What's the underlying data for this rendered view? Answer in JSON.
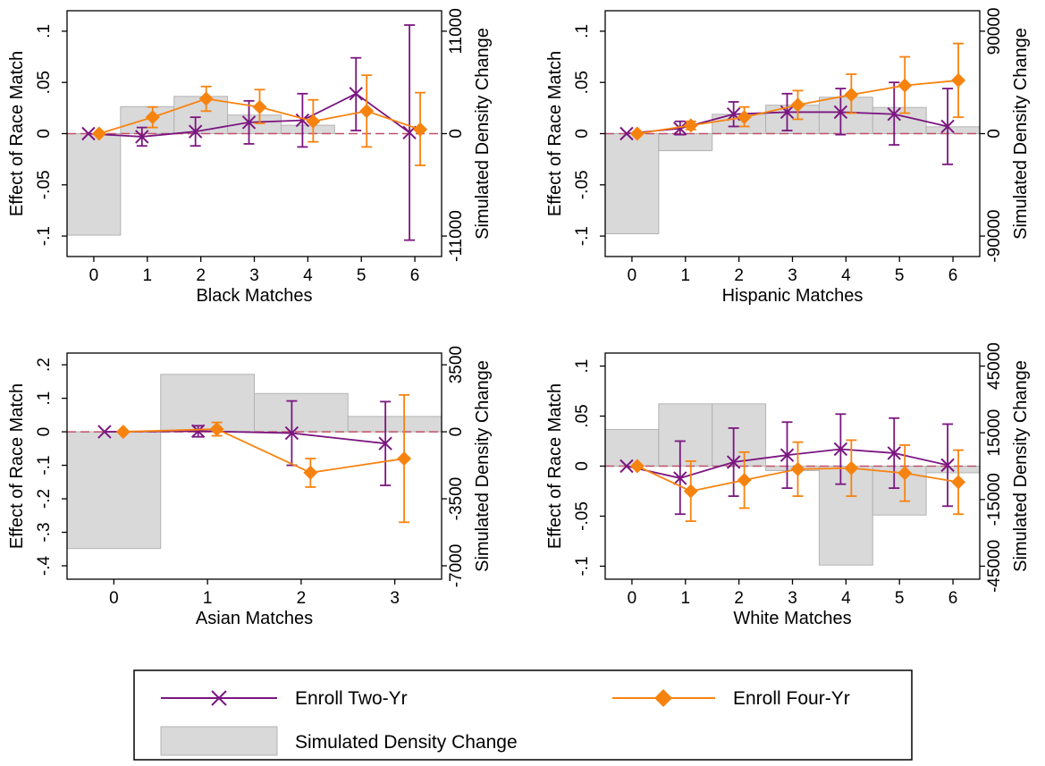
{
  "colors": {
    "two_year": "#7b1680",
    "four_year": "#f7830f",
    "bar_fill": "#d9d9d9",
    "bar_stroke": "#b3b3b3",
    "zero_line": "#c0506a"
  },
  "legend": {
    "two_year": "Enroll Two-Yr",
    "four_year": "Enroll Four-Yr",
    "density": "Simulated Density Change"
  },
  "chart_data": [
    {
      "type": "line",
      "xlabel": "Black Matches",
      "ylabel": "Effect of Race Match",
      "y2label": "Simulated Density Change",
      "xlim": [
        -0.5,
        6.5
      ],
      "xticks": [
        0,
        1,
        2,
        3,
        4,
        5,
        6
      ],
      "ylim": [
        -0.12,
        0.12
      ],
      "yticks": [
        -0.1,
        -0.05,
        0,
        0.05,
        0.1
      ],
      "ytick_labels": [
        "-.1",
        "-.05",
        "0",
        ".05",
        ".1"
      ],
      "y2lim": [
        -13200,
        13200
      ],
      "y2ticks": [
        -11000,
        0,
        11000
      ],
      "y2tick_labels": [
        "-11000",
        "0",
        "11000"
      ],
      "bars": {
        "x": [
          0,
          1,
          2,
          3,
          4,
          5,
          6
        ],
        "values": [
          -10900,
          2900,
          4000,
          2000,
          900,
          0,
          0
        ]
      },
      "series": [
        {
          "name": "Enroll Two-Yr",
          "x": [
            0,
            1,
            2,
            3,
            4,
            5,
            6
          ],
          "y": [
            0,
            -0.003,
            0.002,
            0.011,
            0.013,
            0.039,
            0.001
          ],
          "lo": [
            null,
            -0.012,
            -0.012,
            -0.01,
            -0.013,
            0.003,
            -0.104
          ],
          "hi": [
            null,
            0.006,
            0.016,
            0.032,
            0.039,
            0.074,
            0.106
          ]
        },
        {
          "name": "Enroll Four-Yr",
          "x": [
            0,
            1,
            2,
            3,
            4,
            5,
            6
          ],
          "y": [
            0,
            0.016,
            0.034,
            0.026,
            0.012,
            0.022,
            0.004
          ],
          "lo": [
            null,
            0.006,
            0.022,
            0.01,
            -0.008,
            -0.013,
            -0.031
          ],
          "hi": [
            null,
            0.026,
            0.046,
            0.043,
            0.033,
            0.057,
            0.04
          ]
        }
      ]
    },
    {
      "type": "line",
      "xlabel": "Hispanic Matches",
      "ylabel": "Effect of Race Match",
      "y2label": "Simulated Density Change",
      "xlim": [
        -0.5,
        6.5
      ],
      "xticks": [
        0,
        1,
        2,
        3,
        4,
        5,
        6
      ],
      "ylim": [
        -0.12,
        0.12
      ],
      "yticks": [
        -0.1,
        -0.05,
        0,
        0.05,
        0.1
      ],
      "ytick_labels": [
        "-.1",
        "-.05",
        "0",
        ".05",
        ".1"
      ],
      "y2lim": [
        -108000,
        108000
      ],
      "y2ticks": [
        -90000,
        0,
        90000
      ],
      "y2tick_labels": [
        "-90000",
        "0",
        "90000"
      ],
      "bars": {
        "x": [
          0,
          1,
          2,
          3,
          4,
          5,
          6
        ],
        "values": [
          -88000,
          -15000,
          17000,
          25000,
          32000,
          23000,
          6000
        ]
      },
      "series": [
        {
          "name": "Enroll Two-Yr",
          "x": [
            0,
            1,
            2,
            3,
            4,
            5,
            6
          ],
          "y": [
            0,
            0.005,
            0.019,
            0.021,
            0.021,
            0.019,
            0.007
          ],
          "lo": [
            null,
            -0.001,
            0.007,
            0.003,
            -0.001,
            -0.011,
            -0.03
          ],
          "hi": [
            null,
            0.012,
            0.031,
            0.039,
            0.044,
            0.05,
            0.044
          ]
        },
        {
          "name": "Enroll Four-Yr",
          "x": [
            0,
            1,
            2,
            3,
            4,
            5,
            6
          ],
          "y": [
            0,
            0.008,
            0.016,
            0.028,
            0.038,
            0.047,
            0.052
          ],
          "lo": [
            null,
            0.004,
            0.007,
            0.014,
            0.02,
            0.02,
            0.016
          ],
          "hi": [
            null,
            0.012,
            0.026,
            0.042,
            0.058,
            0.075,
            0.088
          ]
        }
      ]
    },
    {
      "type": "line",
      "xlabel": "Asian Matches",
      "ylabel": "Effect of Race Match",
      "y2label": "Simulated Density Change",
      "xlim": [
        -0.5,
        3.5
      ],
      "xticks": [
        0,
        1,
        2,
        3
      ],
      "ylim": [
        -0.44,
        0.235
      ],
      "yticks": [
        -0.4,
        -0.3,
        -0.2,
        -0.1,
        0,
        0.1,
        0.2
      ],
      "ytick_labels": [
        "-.4",
        "-.3",
        "-.2",
        "-.1",
        "0",
        ".1",
        ".2"
      ],
      "y2lim": [
        -7700,
        4112.5
      ],
      "y2ticks": [
        -7000,
        -3500,
        0,
        3500
      ],
      "y2tick_labels": [
        "-7000",
        "-3500",
        "0",
        "3500"
      ],
      "bars": {
        "x": [
          0,
          1,
          2,
          3
        ],
        "values": [
          -6100,
          3000,
          2000,
          800
        ]
      },
      "series": [
        {
          "name": "Enroll Two-Yr",
          "x": [
            0,
            1,
            2,
            3
          ],
          "y": [
            0,
            0.002,
            -0.004,
            -0.035
          ],
          "lo": [
            null,
            -0.015,
            -0.1,
            -0.16
          ],
          "hi": [
            null,
            0.018,
            0.092,
            0.09
          ]
        },
        {
          "name": "Enroll Four-Yr",
          "x": [
            0,
            1,
            2,
            3
          ],
          "y": [
            0,
            0.008,
            -0.122,
            -0.08
          ],
          "lo": [
            null,
            -0.012,
            -0.165,
            -0.27
          ],
          "hi": [
            null,
            0.028,
            -0.08,
            0.11
          ]
        }
      ]
    },
    {
      "type": "line",
      "xlabel": "White Matches",
      "ylabel": "Effect of Race Match",
      "y2label": "Simulated Density Change",
      "xlim": [
        -0.5,
        6.5
      ],
      "xticks": [
        0,
        1,
        2,
        3,
        4,
        5,
        6
      ],
      "ylim": [
        -0.113,
        0.113
      ],
      "yticks": [
        -0.1,
        -0.05,
        0,
        0.05,
        0.1
      ],
      "ytick_labels": [
        "-.1",
        "-.05",
        "0",
        ".05",
        ".1"
      ],
      "y2lim": [
        -50850,
        50850
      ],
      "y2ticks": [
        -45000,
        -15000,
        15000,
        45000
      ],
      "y2tick_labels": [
        "-45000",
        "-15000",
        "15000",
        "45000"
      ],
      "bars": {
        "x": [
          0,
          1,
          2,
          3,
          4,
          5,
          6
        ],
        "values": [
          16500,
          28000,
          28000,
          -2000,
          -44500,
          -22000,
          -3000
        ]
      },
      "series": [
        {
          "name": "Enroll Two-Yr",
          "x": [
            0,
            1,
            2,
            3,
            4,
            5,
            6
          ],
          "y": [
            0,
            -0.012,
            0.004,
            0.011,
            0.017,
            0.013,
            0.001
          ],
          "lo": [
            null,
            -0.048,
            -0.03,
            -0.022,
            -0.018,
            -0.022,
            -0.04
          ],
          "hi": [
            null,
            0.025,
            0.038,
            0.044,
            0.052,
            0.048,
            0.042
          ]
        },
        {
          "name": "Enroll Four-Yr",
          "x": [
            0,
            1,
            2,
            3,
            4,
            5,
            6
          ],
          "y": [
            0,
            -0.025,
            -0.014,
            -0.003,
            -0.002,
            -0.007,
            -0.016
          ],
          "lo": [
            null,
            -0.055,
            -0.042,
            -0.03,
            -0.03,
            -0.035,
            -0.048
          ],
          "hi": [
            null,
            0.005,
            0.014,
            0.024,
            0.026,
            0.021,
            0.016
          ]
        }
      ]
    }
  ]
}
